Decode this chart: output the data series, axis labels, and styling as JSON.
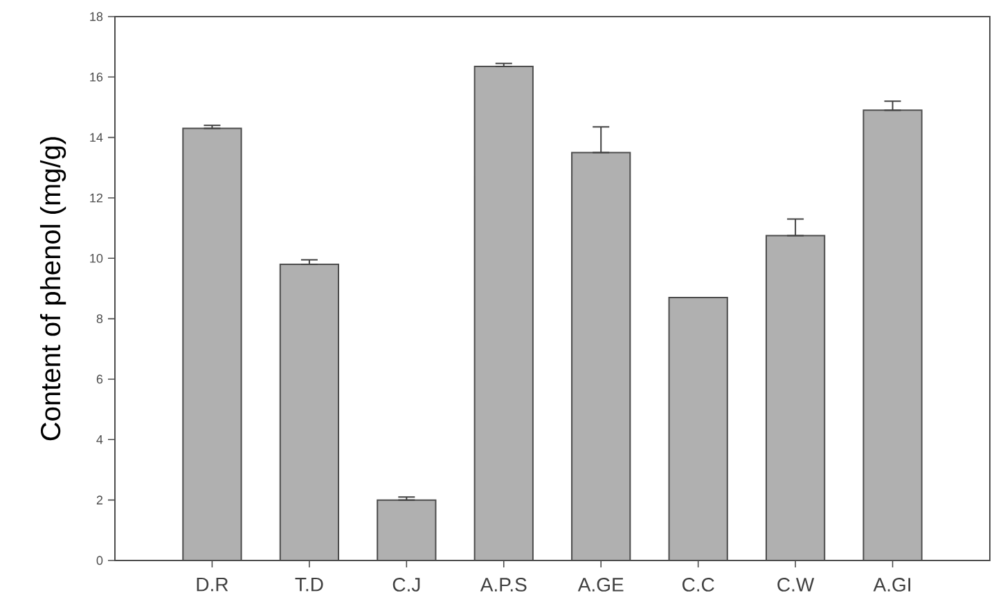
{
  "chart_data": {
    "type": "bar",
    "ylabel": "Content of phenol (mg/g)",
    "categories": [
      "D.R",
      "T.D",
      "C.J",
      "A.P.S",
      "A.GE",
      "C.C",
      "C.W",
      "A.GI"
    ],
    "values": [
      14.3,
      9.8,
      2.0,
      16.35,
      13.5,
      8.7,
      10.75,
      14.9
    ],
    "errors": [
      [
        14.3,
        14.4
      ],
      [
        9.8,
        9.95
      ],
      [
        2.0,
        2.1
      ],
      [
        16.35,
        16.45
      ],
      [
        13.5,
        14.35
      ],
      null,
      [
        10.75,
        11.3
      ],
      [
        14.9,
        15.2
      ]
    ],
    "color": "#b0b0b0",
    "ylim": [
      0,
      18
    ],
    "yticks": [
      0,
      2,
      4,
      6,
      8,
      10,
      12,
      14,
      16,
      18
    ],
    "grid": false
  }
}
